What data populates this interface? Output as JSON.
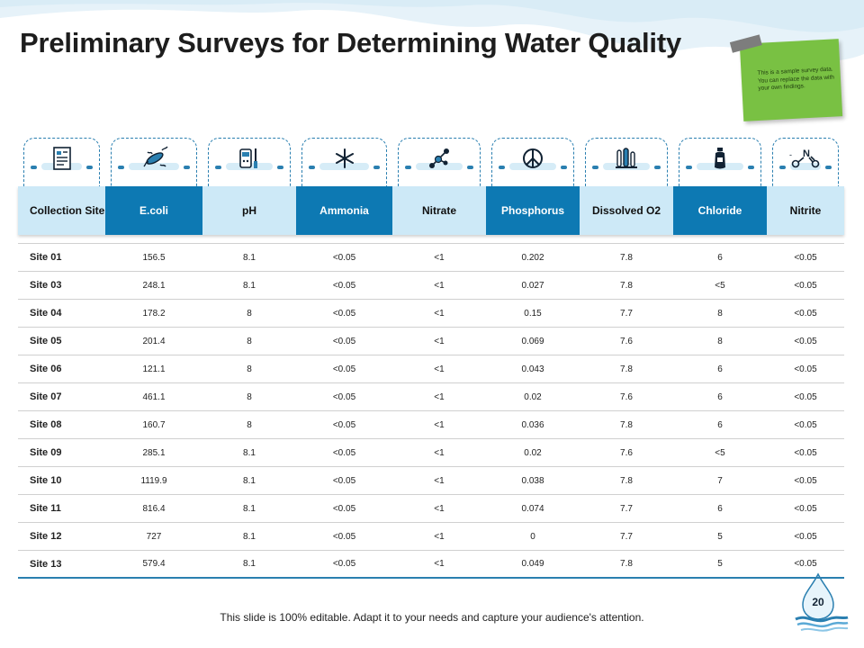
{
  "title": "Preliminary Surveys for Determining Water Quality",
  "sticky_note": "This is a sample survey data. You can replace the data with your own findings.",
  "columns": [
    {
      "label": "Collection Site",
      "style": "light",
      "icon": null
    },
    {
      "label": "E.coli",
      "style": "dark",
      "icon": "microscope-document-icon"
    },
    {
      "label": "pH",
      "style": "light",
      "icon": "bacteria-icon"
    },
    {
      "label": "Ammonia",
      "style": "dark",
      "icon": "ph-meter-icon"
    },
    {
      "label": "Nitrate",
      "style": "light",
      "icon": "snowflake-icon"
    },
    {
      "label": "Phosphorus",
      "style": "dark",
      "icon": "molecule-icon"
    },
    {
      "label": "Dissolved O2",
      "style": "light",
      "icon": "peace-sign-icon"
    },
    {
      "label": "Chloride",
      "style": "dark",
      "icon": "lab-tubes-icon"
    },
    {
      "label": "Nitrite",
      "style": "light",
      "icon": "water-bottle-icon"
    }
  ],
  "extra_icon": "nitrite-chemical-structure-icon",
  "rows": [
    [
      "Site 01",
      "156.5",
      "8.1",
      "<0.05",
      "<1",
      "0.202",
      "7.8",
      "6",
      "<0.05"
    ],
    [
      "Site 03",
      "248.1",
      "8.1",
      "<0.05",
      "<1",
      "0.027",
      "7.8",
      "<5",
      "<0.05"
    ],
    [
      "Site 04",
      "178.2",
      "8",
      "<0.05",
      "<1",
      "0.15",
      "7.7",
      "8",
      "<0.05"
    ],
    [
      "Site 05",
      "201.4",
      "8",
      "<0.05",
      "<1",
      "0.069",
      "7.6",
      "8",
      "<0.05"
    ],
    [
      "Site 06",
      "121.1",
      "8",
      "<0.05",
      "<1",
      "0.043",
      "7.8",
      "6",
      "<0.05"
    ],
    [
      "Site 07",
      "461.1",
      "8",
      "<0.05",
      "<1",
      "0.02",
      "7.6",
      "6",
      "<0.05"
    ],
    [
      "Site 08",
      "160.7",
      "8",
      "<0.05",
      "<1",
      "0.036",
      "7.8",
      "6",
      "<0.05"
    ],
    [
      "Site 09",
      "285.1",
      "8.1",
      "<0.05",
      "<1",
      "0.02",
      "7.6",
      "<5",
      "<0.05"
    ],
    [
      "Site 10",
      "1119.9",
      "8.1",
      "<0.05",
      "<1",
      "0.038",
      "7.8",
      "7",
      "<0.05"
    ],
    [
      "Site 11",
      "816.4",
      "8.1",
      "<0.05",
      "<1",
      "0.074",
      "7.7",
      "6",
      "<0.05"
    ],
    [
      "Site 12",
      "727",
      "8.1",
      "<0.05",
      "<1",
      "0",
      "7.7",
      "5",
      "<0.05"
    ],
    [
      "Site 13",
      "579.4",
      "8.1",
      "<0.05",
      "<1",
      "0.049",
      "7.8",
      "5",
      "<0.05"
    ]
  ],
  "footer": "This slide is 100% editable. Adapt it to your needs and capture your audience's attention.",
  "page_number": "20",
  "colors": {
    "header_dark": "#0d79b3",
    "header_light": "#cde9f7",
    "icon_stroke": "#2a7fb0",
    "sticky_note": "#79c143",
    "wave_light": "#e4f1f8"
  }
}
